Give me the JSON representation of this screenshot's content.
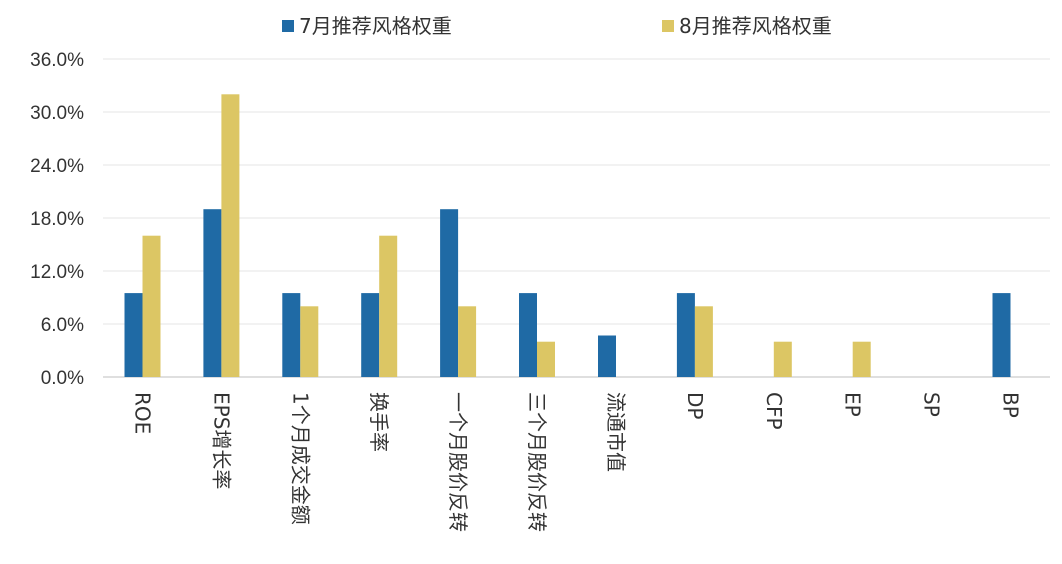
{
  "chart_data": {
    "type": "bar",
    "categories": [
      "ROE",
      "EPS增长率",
      "1个月成交金额",
      "换手率",
      "一个月股价反转",
      "三个月股价反转",
      "流通市值",
      "DP",
      "CFP",
      "EP",
      "SP",
      "BP"
    ],
    "series": [
      {
        "name": "7月推荐风格权重",
        "color": "#1f6aa5",
        "values": [
          9.5,
          19.0,
          9.5,
          9.5,
          19.0,
          9.5,
          4.7,
          9.5,
          0,
          0,
          0,
          9.5
        ]
      },
      {
        "name": "8月推荐风格权重",
        "color": "#dcc664",
        "values": [
          16.0,
          32.0,
          8.0,
          16.0,
          8.0,
          4.0,
          0,
          8.0,
          4.0,
          4.0,
          0,
          0
        ]
      }
    ],
    "yticks": [
      "0.0%",
      "6.0%",
      "12.0%",
      "18.0%",
      "24.0%",
      "30.0%",
      "36.0%"
    ],
    "ylim": [
      0,
      36
    ],
    "grid": true,
    "legend": "top",
    "title": "",
    "xlabel": "",
    "ylabel": ""
  }
}
